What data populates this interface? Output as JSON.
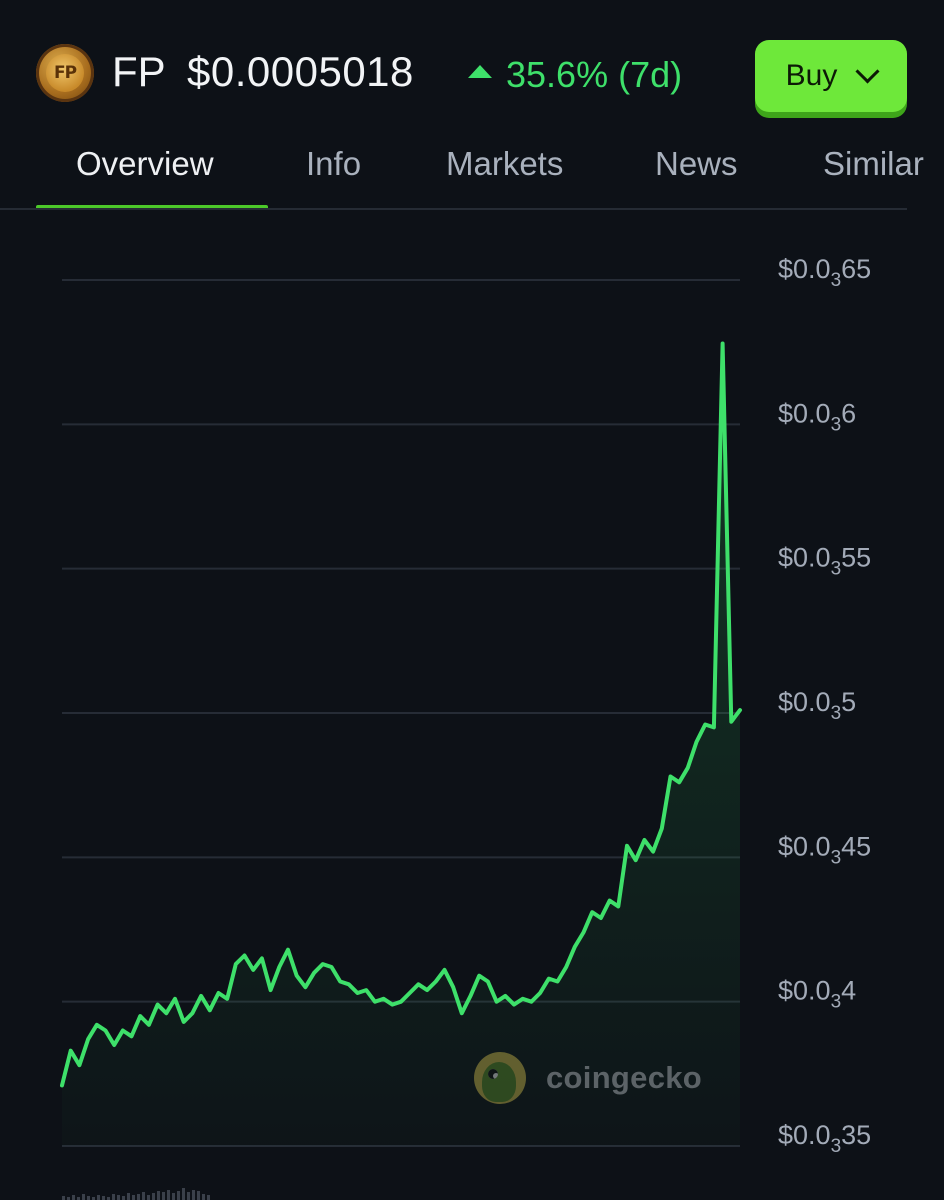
{
  "header": {
    "logo_text": "FP",
    "symbol": "FP",
    "price": "$0.0005018",
    "change": "35.6% (7d)",
    "buy_label": "Buy",
    "colors": {
      "positive": "#3ee06a",
      "buy_button": "#6ee83a",
      "background": "#0d1117"
    }
  },
  "tabs": [
    {
      "label": "Overview",
      "active": true
    },
    {
      "label": "Info",
      "active": false
    },
    {
      "label": "Markets",
      "active": false
    },
    {
      "label": "News",
      "active": false
    },
    {
      "label": "Similar",
      "active": false
    }
  ],
  "watermark": {
    "text": "coingecko",
    "icon": "coingecko-gecko-icon"
  },
  "chart_data": {
    "type": "area",
    "title": "",
    "xlabel": "",
    "ylabel": "",
    "period": "7d",
    "ylim": [
      0.00035,
      0.00065
    ],
    "grid": true,
    "y_axis_side": "right",
    "line_color": "#3ee06a",
    "y_ticks": [
      {
        "value": 0.00065,
        "prefix": "$0.0",
        "sub": "3",
        "digits": "65"
      },
      {
        "value": 0.0006,
        "prefix": "$0.0",
        "sub": "3",
        "digits": "6"
      },
      {
        "value": 0.00055,
        "prefix": "$0.0",
        "sub": "3",
        "digits": "55"
      },
      {
        "value": 0.0005,
        "prefix": "$0.0",
        "sub": "3",
        "digits": "5"
      },
      {
        "value": 0.00045,
        "prefix": "$0.0",
        "sub": "3",
        "digits": "45"
      },
      {
        "value": 0.0004,
        "prefix": "$0.0",
        "sub": "3",
        "digits": "4"
      },
      {
        "value": 0.00035,
        "prefix": "$0.0",
        "sub": "3",
        "digits": "35"
      }
    ],
    "series": [
      {
        "values": [
          0.000371,
          0.000383,
          0.000378,
          0.000387,
          0.000392,
          0.00039,
          0.000385,
          0.00039,
          0.000388,
          0.000395,
          0.000392,
          0.000399,
          0.000396,
          0.000401,
          0.000393,
          0.000396,
          0.000402,
          0.000397,
          0.000403,
          0.000401,
          0.000413,
          0.000416,
          0.000411,
          0.000415,
          0.000404,
          0.000412,
          0.000418,
          0.000409,
          0.000405,
          0.00041,
          0.000413,
          0.000412,
          0.000407,
          0.000406,
          0.000403,
          0.000404,
          0.0004,
          0.000401,
          0.000399,
          0.0004,
          0.000403,
          0.000406,
          0.000404,
          0.000407,
          0.000411,
          0.000405,
          0.000396,
          0.000402,
          0.000409,
          0.000407,
          0.0004,
          0.000402,
          0.000399,
          0.000401,
          0.0004,
          0.000403,
          0.000408,
          0.000407,
          0.000412,
          0.000419,
          0.000424,
          0.000431,
          0.000429,
          0.000435,
          0.000433,
          0.000454,
          0.000449,
          0.000456,
          0.000452,
          0.00046,
          0.000478,
          0.000476,
          0.000481,
          0.00049,
          0.000496,
          0.000495,
          0.000628,
          0.000497,
          0.000501
        ]
      }
    ]
  }
}
